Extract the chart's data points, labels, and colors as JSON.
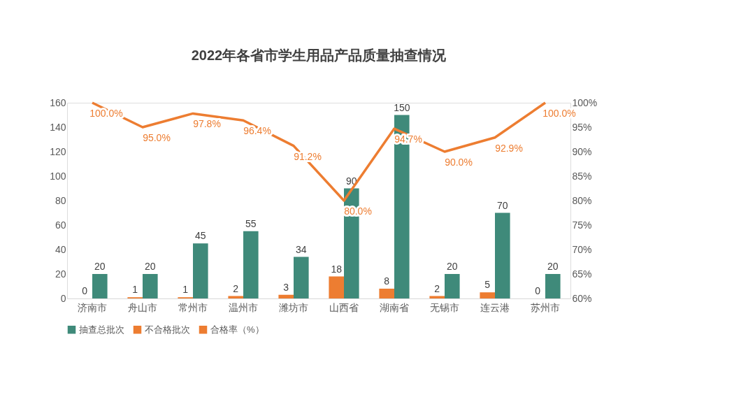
{
  "chart_data": {
    "type": "bar",
    "title": "2022年各省市学生用品产品质量抽查情况",
    "categories": [
      "济南市",
      "舟山市",
      "常州市",
      "温州市",
      "潍坊市",
      "山西省",
      "湖南省",
      "无锡市",
      "连云港",
      "苏州市"
    ],
    "series": [
      {
        "name": "抽查总批次",
        "color": "#3f8a7a",
        "values": [
          20,
          20,
          45,
          55,
          34,
          90,
          150,
          20,
          70,
          20
        ]
      },
      {
        "name": "不合格批次",
        "color": "#ed7d31",
        "values": [
          0,
          1,
          1,
          2,
          3,
          18,
          8,
          2,
          5,
          0
        ]
      },
      {
        "name": "合格率（%）",
        "type": "line",
        "axis": "y2",
        "color": "#ed7d31",
        "values": [
          100,
          95,
          97.8,
          96.4,
          91.2,
          80,
          94.7,
          90,
          92.9,
          100
        ],
        "value_labels": [
          "100.0%",
          "95.0%",
          "97.8%",
          "96.4%",
          "91.2%",
          "80.0%",
          "94.7%",
          "90.0%",
          "92.9%",
          "100.0%"
        ]
      }
    ],
    "data_labels": true,
    "ylim": [
      0,
      160
    ],
    "yticks": [
      0,
      20,
      40,
      60,
      80,
      100,
      120,
      140,
      160
    ],
    "y2lim": [
      60,
      100
    ],
    "y2ticks": [
      {
        "value": 60,
        "label": "60%"
      },
      {
        "value": 65,
        "label": "65%"
      },
      {
        "value": 70,
        "label": "70%"
      },
      {
        "value": 75,
        "label": "75%"
      },
      {
        "value": 80,
        "label": "80%"
      },
      {
        "value": 85,
        "label": "85%"
      },
      {
        "value": 90,
        "label": "90%"
      },
      {
        "value": 95,
        "label": "95%"
      },
      {
        "value": 100,
        "label": "100%"
      }
    ],
    "grid": false,
    "legend": "bottom"
  }
}
